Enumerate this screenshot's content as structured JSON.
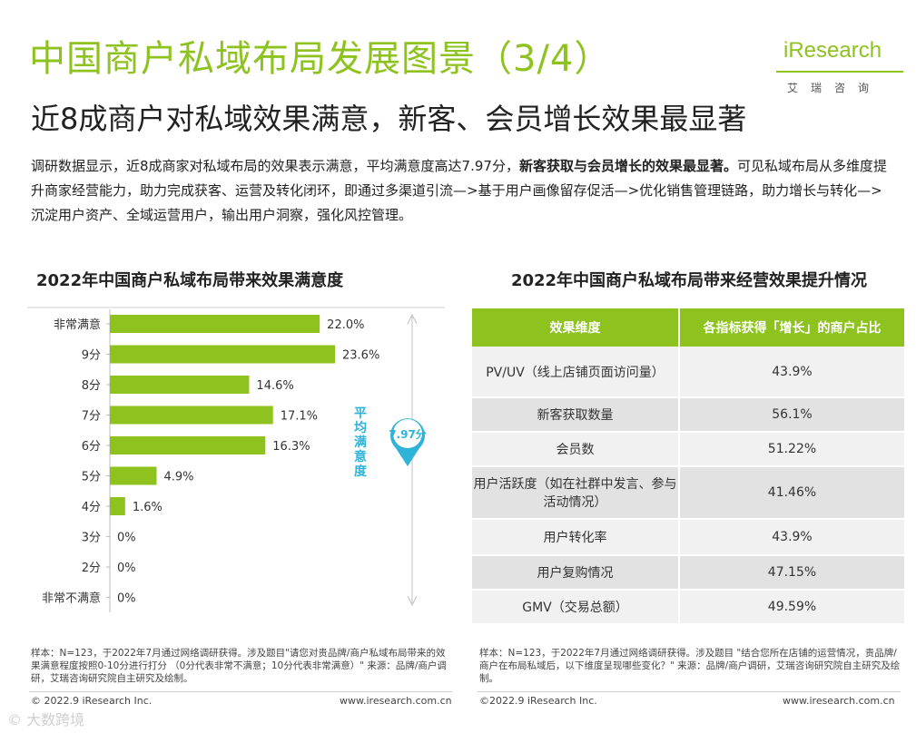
{
  "header": {
    "title": "中国商户私域布局发展图景（3/4）",
    "subtitle": "近8成商户对私域效果满意，新客、会员增长效果最显著",
    "intro_part1": "调研数据显示，近8成商家对私域布局的效果表示满意，平均满意度高达7.97分，",
    "intro_bold": "新客获取与会员增长的效果最显著。",
    "intro_part2": "可见私域布局从多维度提升商家经营能力，助力完成获客、运营及转化闭环，即通过多渠道引流—>基于用户画像留存促活—>优化销售管理链路，助力增长与转化—>沉淀用户资产、全域运营用户，输出用户洞察，强化风控管理。"
  },
  "logo": {
    "text": "iResearch",
    "subtext": "艾瑞咨询"
  },
  "chart_data": {
    "type": "bar",
    "orientation": "horizontal",
    "title": "2022年中国商户私域布局带来效果满意度",
    "categories": [
      "非常满意",
      "9分",
      "8分",
      "7分",
      "6分",
      "5分",
      "4分",
      "3分",
      "2分",
      "非常不满意"
    ],
    "values": [
      22.0,
      23.6,
      14.6,
      17.1,
      16.3,
      4.9,
      1.6,
      0,
      0,
      0
    ],
    "value_labels": [
      "22.0%",
      "23.6%",
      "14.6%",
      "17.1%",
      "16.3%",
      "4.9%",
      "1.6%",
      "0%",
      "0%",
      "0%"
    ],
    "unit": "%",
    "xlim": [
      0,
      23.6
    ],
    "bar_color": "#8dc21f",
    "average_label": "平均满意度",
    "average_value": "7.97分",
    "accent_color": "#2fb3d8"
  },
  "table": {
    "title": "2022年中国商户私域布局带来经营效果提升情况",
    "headers": [
      "效果维度",
      "各指标获得「增长」的商户占比"
    ],
    "rows": [
      [
        "PV/UV（线上店铺页面访问量）",
        "43.9%"
      ],
      [
        "新客获取数量",
        "56.1%"
      ],
      [
        "会员数",
        "51.22%"
      ],
      [
        "用户活跃度（如在社群中发言、参与活动情况）",
        "41.46%"
      ],
      [
        "用户转化率",
        "43.9%"
      ],
      [
        "用户复购情况",
        "47.15%"
      ],
      [
        "GMV（交易总额）",
        "49.59%"
      ]
    ]
  },
  "notes": {
    "left": "样本：N=123，于2022年7月通过网络调研获得。涉及题目\"请您对贵品牌/商户私域布局带来的效果满意程度按照0-10分进行打分 （0分代表非常不满意；10分代表非常满意）\" 来源：品牌/商户调研，艾瑞咨询研究院自主研究及绘制。",
    "right": "样本：N=123，于2022年7月通过网络调研获得。涉及题目 \"结合您所在店铺的运营情况，贵品牌/商户在布局私域后，以下维度呈现哪些变化？\" 来源：品牌/商户调研，艾瑞咨询研究院自主研究及绘制。"
  },
  "footer": {
    "left_copyright": "© 2022.9 iResearch Inc.",
    "left_url": "www.iresearch.com.cn",
    "right_copyright": "©2022.9 iResearch Inc.",
    "right_url": "www.iresearch.com.cn",
    "watermark": "© 大数跨境"
  },
  "colors": {
    "brand_green": "#8dc21f",
    "accent_blue": "#2fb3d8"
  }
}
